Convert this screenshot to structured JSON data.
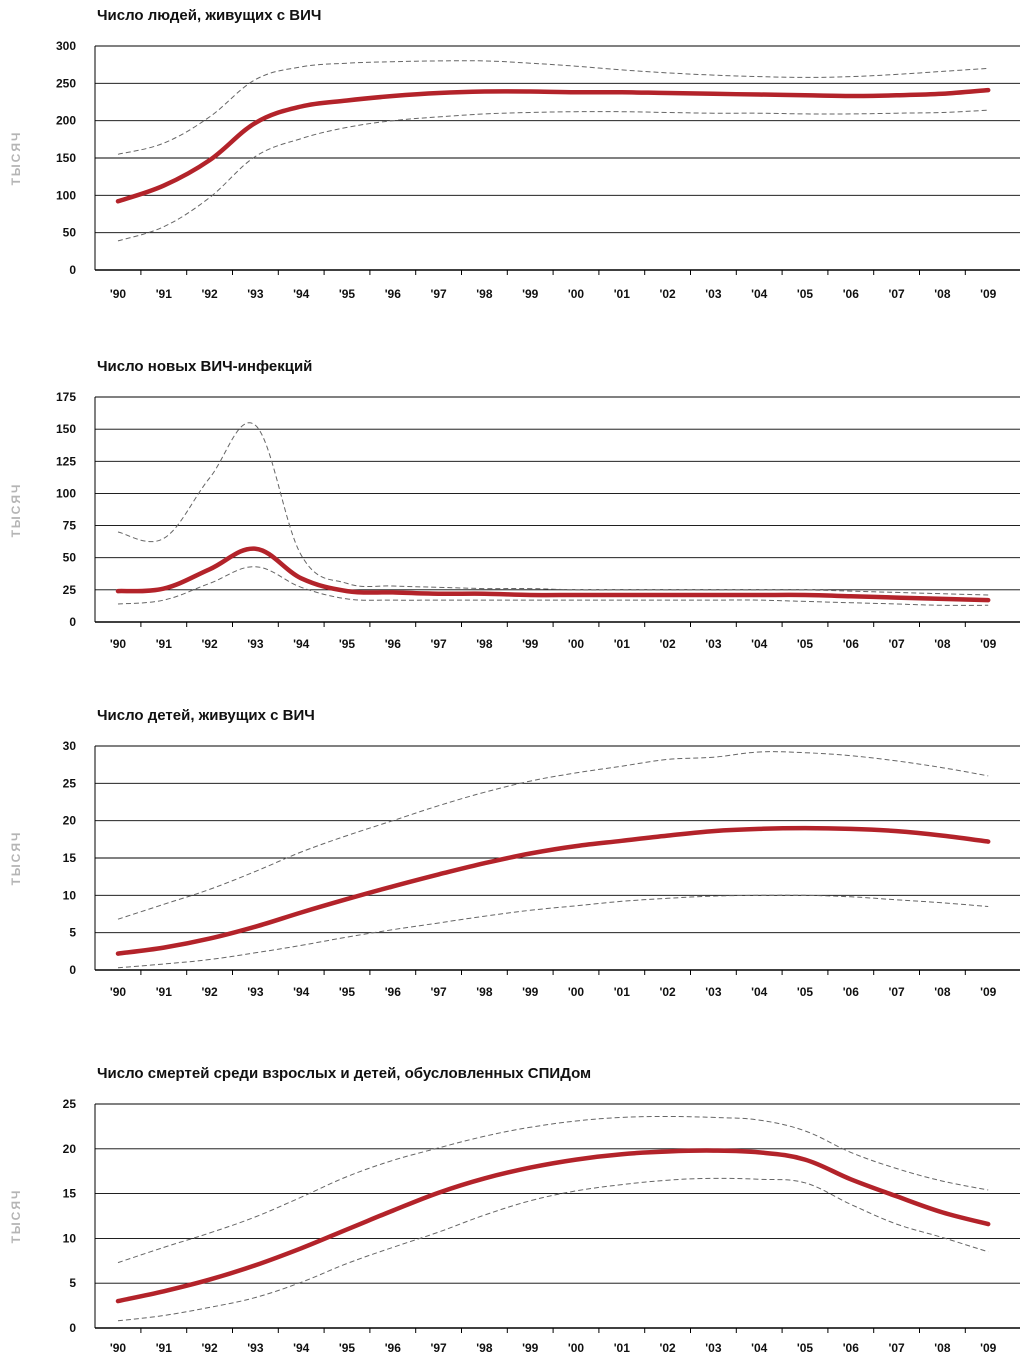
{
  "colors": {
    "estimate": "#b3232a",
    "bounds": "#666666",
    "grid": "#000000"
  },
  "years": [
    "'90",
    "'91",
    "'92",
    "'93",
    "'94",
    "'95",
    "'96",
    "'97",
    "'98",
    "'99",
    "'00",
    "'01",
    "'02",
    "'03",
    "'04",
    "'05",
    "'06",
    "'07",
    "'08",
    "'09"
  ],
  "chart_data": [
    {
      "type": "line",
      "title": "Число людей, живущих с ВИЧ",
      "ylabel": "тысяч",
      "ylim": [
        0,
        300
      ],
      "yticks": [
        0,
        50,
        100,
        150,
        200,
        250,
        300
      ],
      "grid": true,
      "x": [
        "'90",
        "'91",
        "'92",
        "'93",
        "'94",
        "'95",
        "'96",
        "'97",
        "'98",
        "'99",
        "'00",
        "'01",
        "'02",
        "'03",
        "'04",
        "'05",
        "'06",
        "'07",
        "'08",
        "'09"
      ],
      "series": [
        {
          "values": [
            92,
            113,
            147,
            197,
            219,
            227,
            233,
            237,
            239,
            239,
            238,
            238,
            237,
            236,
            235,
            234,
            233,
            234,
            236,
            241
          ]
        },
        {
          "values": [
            155,
            170,
            205,
            255,
            272,
            277,
            279,
            280,
            280,
            277,
            273,
            268,
            264,
            261,
            259,
            258,
            259,
            262,
            266,
            270
          ]
        },
        {
          "values": [
            39,
            58,
            97,
            152,
            176,
            191,
            200,
            205,
            209,
            211,
            212,
            212,
            211,
            210,
            210,
            209,
            209,
            210,
            211,
            214
          ]
        }
      ]
    },
    {
      "type": "line",
      "title": "Число новых ВИЧ-инфекций",
      "ylabel": "тысяч",
      "ylim": [
        0,
        175
      ],
      "yticks": [
        0,
        25,
        50,
        75,
        100,
        125,
        150,
        175
      ],
      "grid": true,
      "x": [
        "'90",
        "'91",
        "'92",
        "'93",
        "'94",
        "'95",
        "'96",
        "'97",
        "'98",
        "'99",
        "'00",
        "'01",
        "'02",
        "'03",
        "'04",
        "'05",
        "'06",
        "'07",
        "'08",
        "'09"
      ],
      "series": [
        {
          "values": [
            24,
            26,
            41,
            57,
            34,
            24,
            23,
            22,
            22,
            21,
            21,
            21,
            21,
            21,
            21,
            21,
            20,
            19,
            18,
            17
          ]
        },
        {
          "values": [
            70,
            65,
            112,
            153,
            52,
            30,
            28,
            27,
            26,
            26,
            25,
            25,
            25,
            25,
            25,
            25,
            24,
            23,
            22,
            21
          ]
        },
        {
          "values": [
            14,
            17,
            30,
            43,
            27,
            18,
            17,
            17,
            17,
            17,
            17,
            17,
            17,
            17,
            17,
            16,
            15,
            14,
            13,
            13
          ]
        }
      ]
    },
    {
      "type": "line",
      "title": "Число детей, живущих с ВИЧ",
      "ylabel": "тысяч",
      "ylim": [
        0,
        30
      ],
      "yticks": [
        0,
        5,
        10,
        15,
        20,
        25,
        30
      ],
      "grid": true,
      "x": [
        "'90",
        "'91",
        "'92",
        "'93",
        "'94",
        "'95",
        "'96",
        "'97",
        "'98",
        "'99",
        "'00",
        "'01",
        "'02",
        "'03",
        "'04",
        "'05",
        "'06",
        "'07",
        "'08",
        "'09"
      ],
      "series": [
        {
          "values": [
            2.2,
            3.0,
            4.2,
            5.8,
            7.7,
            9.5,
            11.2,
            12.8,
            14.3,
            15.6,
            16.6,
            17.3,
            18.0,
            18.6,
            18.9,
            19.0,
            18.9,
            18.6,
            18.0,
            17.2
          ]
        },
        {
          "values": [
            6.8,
            8.8,
            10.8,
            13.2,
            15.8,
            18.0,
            20.0,
            22.0,
            23.8,
            25.3,
            26.4,
            27.3,
            28.2,
            28.5,
            29.2,
            29.1,
            28.7,
            28.0,
            27.1,
            26.0
          ]
        },
        {
          "values": [
            0.3,
            0.8,
            1.4,
            2.3,
            3.3,
            4.4,
            5.4,
            6.3,
            7.2,
            8.0,
            8.6,
            9.2,
            9.6,
            9.9,
            10.0,
            10.0,
            9.8,
            9.4,
            9.0,
            8.5
          ]
        }
      ]
    },
    {
      "type": "line",
      "title": "Число смертей среди взрослых и детей, обусловленных СПИДом",
      "ylabel": "тысяч",
      "ylim": [
        0,
        25
      ],
      "yticks": [
        0,
        5,
        10,
        15,
        20,
        25
      ],
      "grid": true,
      "x": [
        "'90",
        "'91",
        "'92",
        "'93",
        "'94",
        "'95",
        "'96",
        "'97",
        "'98",
        "'99",
        "'00",
        "'01",
        "'02",
        "'03",
        "'04",
        "'05",
        "'06",
        "'07",
        "'08",
        "'09"
      ],
      "series": [
        {
          "values": [
            3.0,
            4.1,
            5.4,
            7.0,
            8.9,
            11.0,
            13.1,
            15.1,
            16.7,
            17.9,
            18.8,
            19.4,
            19.7,
            19.8,
            19.6,
            18.8,
            16.6,
            14.7,
            12.9,
            11.6
          ]
        },
        {
          "values": [
            7.3,
            9.0,
            10.6,
            12.4,
            14.6,
            16.9,
            18.7,
            20.1,
            21.4,
            22.4,
            23.1,
            23.5,
            23.6,
            23.5,
            23.2,
            22.0,
            19.6,
            17.8,
            16.4,
            15.4
          ]
        },
        {
          "values": [
            0.8,
            1.4,
            2.3,
            3.4,
            5.1,
            7.2,
            9.0,
            10.7,
            12.6,
            14.2,
            15.3,
            16.0,
            16.5,
            16.7,
            16.6,
            16.2,
            13.8,
            11.6,
            10.1,
            8.5
          ]
        }
      ]
    }
  ]
}
